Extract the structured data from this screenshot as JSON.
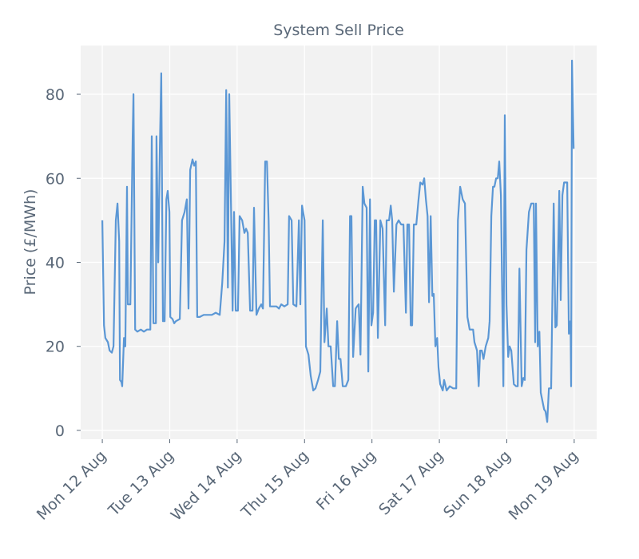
{
  "chart_data": {
    "type": "line",
    "title": "System Sell Price",
    "y_label": "Price (£/MWh)",
    "x": [
      0,
      0.6,
      1.1,
      2,
      2.6,
      3.4,
      4,
      4.8,
      5.4,
      6,
      6.3,
      6.8,
      7.1,
      7.7,
      8.2,
      8.8,
      9.1,
      10,
      10.8,
      11.1,
      11.7,
      12.5,
      13.7,
      14.8,
      15.9,
      17.1,
      17.6,
      18.2,
      19.1,
      19.3,
      19.9,
      20.5,
      21,
      21.6,
      22.2,
      22.8,
      23.3,
      23.9,
      24.2,
      25,
      25.6,
      26.2,
      27.6,
      28.4,
      29.3,
      30.1,
      30.7,
      31.3,
      32.1,
      32.7,
      33.3,
      33.8,
      34.7,
      36.1,
      37.5,
      39,
      40.4,
      41.8,
      42.7,
      43.5,
      44.1,
      44.7,
      45.2,
      45.8,
      46.4,
      46.9,
      47.5,
      48.3,
      48.9,
      49.8,
      50.6,
      51.2,
      51.8,
      52.6,
      53.5,
      54,
      54.9,
      55.7,
      56.6,
      57.2,
      58,
      58.6,
      59.2,
      59.7,
      60.9,
      62,
      62.9,
      63.7,
      64.8,
      66,
      66.5,
      67.4,
      68,
      69.1,
      70,
      70.5,
      71.1,
      72,
      72.5,
      73.4,
      74.2,
      75.1,
      75.9,
      76.8,
      77.6,
      78.5,
      79.1,
      79.9,
      80.5,
      81.3,
      82.2,
      82.8,
      83.6,
      84.2,
      84.8,
      85.6,
      86.7,
      87.6,
      88.2,
      88.7,
      89.3,
      90.2,
      90.7,
      91.3,
      91.9,
      92.7,
      93.3,
      94.1,
      94.7,
      95.3,
      95.8,
      96.4,
      97,
      97.5,
      98.1,
      99,
      99.8,
      100.7,
      101.2,
      102.1,
      102.7,
      103.2,
      103.8,
      104.7,
      105.5,
      106.4,
      107.2,
      108.1,
      108.6,
      109.2,
      109.8,
      110.3,
      110.9,
      111.8,
      112.6,
      113.2,
      114,
      114.6,
      115.2,
      115.8,
      116.3,
      116.9,
      117.5,
      118,
      118.6,
      119.2,
      119.7,
      120.3,
      121.2,
      121.7,
      122.6,
      123.7,
      124.9,
      126,
      126.6,
      127.4,
      128.3,
      129.1,
      130,
      130.8,
      132,
      132.5,
      133.4,
      134,
      134.5,
      135.1,
      135.7,
      136.5,
      137.4,
      137.9,
      138.5,
      139.1,
      139.6,
      140.2,
      140.8,
      141.3,
      141.9,
      142.8,
      143.3,
      143.9,
      144.5,
      145,
      145.6,
      146.5,
      147.3,
      147.9,
      148.5,
      149.3,
      149.9,
      150.4,
      151,
      151.9,
      152.7,
      153.6,
      154.1,
      154.4,
      155,
      155.6,
      156.1,
      156.7,
      157.3,
      157.8,
      158.4,
      159,
      159.8,
      160.7,
      161.3,
      161.8,
      162.7,
      163.2,
      163.8,
      164.4,
      164.9,
      165.5,
      166.1,
      166.7,
      166.9,
      167.2,
      167.8
    ],
    "series": [
      {
        "name": "System Sell Price",
        "color": "#5b97d5",
        "values": [
          50,
          25,
          22,
          21,
          19,
          18.5,
          20,
          50,
          54,
          45,
          12,
          11.5,
          10.5,
          22,
          20,
          58,
          30,
          30,
          70,
          80,
          24,
          23.5,
          24,
          23.5,
          24,
          24,
          70,
          25.5,
          25.5,
          70,
          40,
          68,
          85,
          26,
          26,
          55,
          57,
          52,
          27,
          26.5,
          25.5,
          26,
          26.5,
          50,
          52,
          55,
          29,
          62,
          64.5,
          63,
          64,
          27,
          27,
          27.5,
          27.5,
          27.5,
          28,
          27.5,
          35,
          45,
          81,
          34,
          80,
          55,
          28.5,
          52,
          28.5,
          28.5,
          51,
          50,
          47,
          48,
          47,
          28.5,
          28.5,
          53,
          27.5,
          29,
          30,
          29,
          64,
          64,
          50,
          29.5,
          29.5,
          29.5,
          29,
          30,
          29.5,
          30,
          51,
          50,
          30,
          29.5,
          50,
          30,
          53.5,
          50,
          20,
          18,
          13,
          9.5,
          10,
          12,
          14,
          50,
          21,
          29,
          20,
          20,
          10.5,
          10.5,
          26,
          17,
          17,
          10.5,
          10.5,
          12,
          51,
          51,
          17.5,
          29,
          29.5,
          30,
          18,
          58,
          54,
          53,
          14,
          55,
          25,
          28,
          50,
          50,
          22,
          50,
          48,
          25,
          50,
          50,
          53.5,
          50,
          33,
          49,
          50,
          49,
          49,
          28,
          49,
          49,
          25,
          25,
          49,
          49,
          55,
          59,
          58.5,
          60,
          55,
          51,
          30.5,
          51,
          32,
          32.5,
          20,
          22,
          15,
          11,
          9.5,
          12,
          9.5,
          10.5,
          10,
          10,
          50,
          58,
          55,
          54,
          27,
          24,
          24,
          21,
          19,
          10.5,
          19,
          19,
          17,
          20,
          22,
          26,
          51,
          58,
          58,
          60,
          60,
          64,
          56,
          10.5,
          75,
          30,
          17.5,
          20,
          19,
          11,
          10.5,
          10.5,
          38.5,
          10.5,
          12.5,
          12,
          43,
          52,
          54,
          54,
          21,
          54,
          20,
          23.5,
          9,
          7,
          5,
          4.5,
          2,
          10,
          10,
          54,
          24.5,
          25,
          57,
          31,
          56,
          59,
          59,
          59,
          23,
          26,
          10.5,
          88,
          67
        ]
      }
    ],
    "xlim": [
      -7.7,
      176
    ],
    "ylim": [
      -2.1,
      91.6
    ],
    "xticks": [
      {
        "value": 0,
        "label": "Mon 12 Aug"
      },
      {
        "value": 24,
        "label": "Tue 13 Aug"
      },
      {
        "value": 48,
        "label": "Wed 14 Aug"
      },
      {
        "value": 72,
        "label": "Thu 15 Aug"
      },
      {
        "value": 96,
        "label": "Fri 16 Aug"
      },
      {
        "value": 120,
        "label": "Sat 17 Aug"
      },
      {
        "value": 144,
        "label": "Sun 18 Aug"
      },
      {
        "value": 168,
        "label": "Mon 19 Aug"
      }
    ],
    "yticks": [
      0,
      20,
      40,
      60,
      80
    ],
    "grid": true
  }
}
